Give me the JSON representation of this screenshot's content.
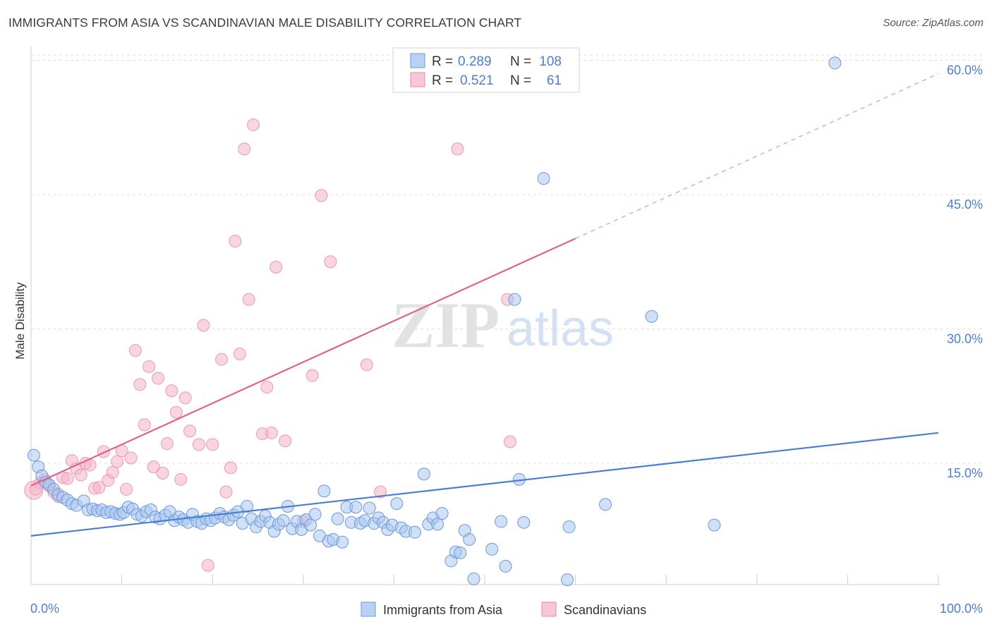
{
  "title": "IMMIGRANTS FROM ASIA VS SCANDINAVIAN MALE DISABILITY CORRELATION CHART",
  "source": "Source: ZipAtlas.com",
  "colors": {
    "blue": "#4a7fd1",
    "blue_fill": "#a9c6ef",
    "pink": "#e0628a",
    "pink_fill": "#f4b3c7",
    "grid": "#dddddd",
    "tick_text": "#4a7fd1"
  },
  "legend": {
    "blue": {
      "r_label": "R =",
      "r_value": "0.289",
      "n_label": "N =",
      "n_value": "108"
    },
    "pink": {
      "r_label": "R =",
      "r_value": "0.521",
      "n_label": "N =",
      "n_value": "61"
    }
  },
  "watermark": {
    "zip": "ZIP",
    "atlas": "atlas"
  },
  "chart_data": {
    "type": "scatter",
    "xlabel": "",
    "ylabel": "Male Disability",
    "xlim": [
      0,
      100
    ],
    "ylim": [
      0,
      60
    ],
    "x_tick_labels": [
      "0.0%",
      "100.0%"
    ],
    "y_ticks": [
      15,
      30,
      45,
      60
    ],
    "y_tick_labels": [
      "15.0%",
      "30.0%",
      "45.0%",
      "60.0%"
    ],
    "grid": true,
    "legend_position": "top-center",
    "series": [
      {
        "name": "Immigrants from Asia",
        "color": "#4a7fd1",
        "trend": {
          "x0": 0,
          "y0": 6.9,
          "x1": 100,
          "y1": 18.4,
          "dashed_from": null
        },
        "points": [
          [
            0.3,
            15.9
          ],
          [
            0.8,
            14.6
          ],
          [
            1.2,
            13.6
          ],
          [
            1.6,
            12.9
          ],
          [
            2.0,
            12.6
          ],
          [
            2.5,
            12.1
          ],
          [
            3.0,
            11.5
          ],
          [
            3.5,
            11.2
          ],
          [
            4.0,
            10.9
          ],
          [
            4.5,
            10.5
          ],
          [
            5.0,
            10.3
          ],
          [
            5.8,
            10.8
          ],
          [
            6.3,
            9.8
          ],
          [
            6.8,
            9.9
          ],
          [
            7.3,
            9.7
          ],
          [
            7.8,
            9.8
          ],
          [
            8.3,
            9.5
          ],
          [
            8.8,
            9.6
          ],
          [
            9.3,
            9.4
          ],
          [
            9.8,
            9.3
          ],
          [
            10.2,
            9.5
          ],
          [
            10.7,
            10.1
          ],
          [
            11.2,
            9.9
          ],
          [
            11.7,
            9.3
          ],
          [
            12.2,
            9.1
          ],
          [
            12.7,
            9.6
          ],
          [
            13.2,
            9.8
          ],
          [
            13.7,
            9.0
          ],
          [
            14.2,
            8.8
          ],
          [
            14.8,
            9.2
          ],
          [
            15.3,
            9.6
          ],
          [
            15.8,
            8.6
          ],
          [
            16.3,
            9.0
          ],
          [
            16.8,
            8.7
          ],
          [
            17.3,
            8.4
          ],
          [
            17.8,
            9.3
          ],
          [
            18.3,
            8.5
          ],
          [
            18.8,
            8.3
          ],
          [
            19.3,
            8.8
          ],
          [
            19.8,
            8.6
          ],
          [
            20.3,
            8.9
          ],
          [
            20.8,
            9.4
          ],
          [
            21.3,
            9.0
          ],
          [
            21.8,
            8.7
          ],
          [
            22.3,
            9.2
          ],
          [
            22.8,
            9.6
          ],
          [
            23.3,
            8.3
          ],
          [
            23.8,
            10.2
          ],
          [
            24.3,
            8.8
          ],
          [
            24.8,
            7.9
          ],
          [
            25.3,
            8.5
          ],
          [
            25.8,
            9.1
          ],
          [
            26.3,
            8.4
          ],
          [
            26.8,
            7.4
          ],
          [
            27.3,
            8.2
          ],
          [
            27.8,
            8.6
          ],
          [
            28.3,
            10.2
          ],
          [
            28.8,
            7.7
          ],
          [
            29.3,
            8.5
          ],
          [
            29.8,
            7.6
          ],
          [
            30.3,
            8.7
          ],
          [
            30.8,
            8.1
          ],
          [
            31.3,
            9.3
          ],
          [
            31.8,
            6.9
          ],
          [
            32.3,
            11.9
          ],
          [
            32.8,
            6.3
          ],
          [
            33.3,
            6.5
          ],
          [
            33.8,
            8.8
          ],
          [
            34.3,
            6.2
          ],
          [
            34.8,
            10.1
          ],
          [
            35.3,
            8.4
          ],
          [
            35.8,
            10.1
          ],
          [
            36.3,
            8.3
          ],
          [
            36.8,
            8.6
          ],
          [
            37.3,
            10.0
          ],
          [
            37.8,
            8.3
          ],
          [
            38.3,
            8.9
          ],
          [
            38.8,
            8.4
          ],
          [
            39.3,
            7.6
          ],
          [
            39.8,
            8.1
          ],
          [
            40.3,
            10.5
          ],
          [
            40.8,
            7.8
          ],
          [
            41.3,
            7.4
          ],
          [
            42.3,
            7.3
          ],
          [
            43.3,
            13.8
          ],
          [
            43.8,
            8.2
          ],
          [
            44.3,
            8.9
          ],
          [
            44.8,
            8.2
          ],
          [
            45.3,
            9.4
          ],
          [
            46.3,
            4.1
          ],
          [
            46.8,
            5.1
          ],
          [
            47.3,
            5.0
          ],
          [
            47.8,
            7.5
          ],
          [
            48.3,
            6.5
          ],
          [
            48.8,
            2.1
          ],
          [
            50.8,
            5.4
          ],
          [
            51.8,
            8.5
          ],
          [
            52.3,
            3.5
          ],
          [
            53.3,
            33.3
          ],
          [
            53.8,
            13.2
          ],
          [
            54.3,
            8.4
          ],
          [
            56.5,
            46.8
          ],
          [
            59.3,
            7.9
          ],
          [
            59.1,
            2.0
          ],
          [
            63.3,
            10.4
          ],
          [
            68.4,
            31.4
          ],
          [
            75.3,
            8.1
          ],
          [
            88.6,
            59.7
          ]
        ]
      },
      {
        "name": "Scandinavians",
        "color": "#e0628a",
        "trend": {
          "x0": 0,
          "y0": 12.5,
          "x1": 100,
          "y1": 58.5,
          "dashed_from": 60
        },
        "points": [
          [
            0.5,
            12.1
          ],
          [
            1.0,
            12.8
          ],
          [
            1.5,
            13.2
          ],
          [
            2.0,
            12.5
          ],
          [
            2.5,
            11.8
          ],
          [
            3.0,
            11.3
          ],
          [
            3.5,
            13.4
          ],
          [
            4.0,
            13.3
          ],
          [
            4.5,
            15.3
          ],
          [
            5.0,
            14.4
          ],
          [
            5.5,
            13.7
          ],
          [
            6.0,
            15.0
          ],
          [
            6.5,
            14.8
          ],
          [
            7.0,
            12.2
          ],
          [
            7.5,
            12.3
          ],
          [
            8.0,
            16.3
          ],
          [
            8.5,
            13.1
          ],
          [
            9.0,
            14.0
          ],
          [
            9.5,
            15.2
          ],
          [
            10.0,
            16.4
          ],
          [
            10.5,
            12.1
          ],
          [
            11.0,
            15.6
          ],
          [
            11.5,
            27.6
          ],
          [
            12.0,
            23.8
          ],
          [
            12.5,
            19.3
          ],
          [
            13.0,
            25.8
          ],
          [
            13.5,
            14.6
          ],
          [
            14.0,
            24.5
          ],
          [
            14.5,
            13.9
          ],
          [
            15.0,
            17.2
          ],
          [
            15.5,
            23.1
          ],
          [
            16.0,
            20.7
          ],
          [
            16.5,
            13.2
          ],
          [
            17.0,
            22.3
          ],
          [
            17.5,
            18.6
          ],
          [
            18.5,
            17.1
          ],
          [
            19.0,
            30.4
          ],
          [
            19.5,
            3.6
          ],
          [
            20.0,
            17.1
          ],
          [
            21.0,
            26.6
          ],
          [
            21.5,
            11.8
          ],
          [
            22.0,
            14.5
          ],
          [
            22.5,
            39.8
          ],
          [
            23.0,
            27.2
          ],
          [
            23.5,
            50.1
          ],
          [
            24.0,
            33.3
          ],
          [
            24.5,
            52.8
          ],
          [
            25.5,
            18.3
          ],
          [
            26.0,
            23.5
          ],
          [
            26.5,
            18.4
          ],
          [
            27.0,
            36.9
          ],
          [
            28.0,
            17.5
          ],
          [
            30.0,
            8.5
          ],
          [
            31.0,
            24.8
          ],
          [
            32.0,
            44.9
          ],
          [
            33.0,
            37.5
          ],
          [
            37.0,
            26.0
          ],
          [
            38.5,
            11.8
          ],
          [
            47.0,
            50.1
          ],
          [
            52.5,
            33.3
          ],
          [
            52.8,
            17.4
          ]
        ]
      }
    ]
  },
  "bottom_legend": {
    "blue_label": "Immigrants from Asia",
    "pink_label": "Scandinavians"
  }
}
